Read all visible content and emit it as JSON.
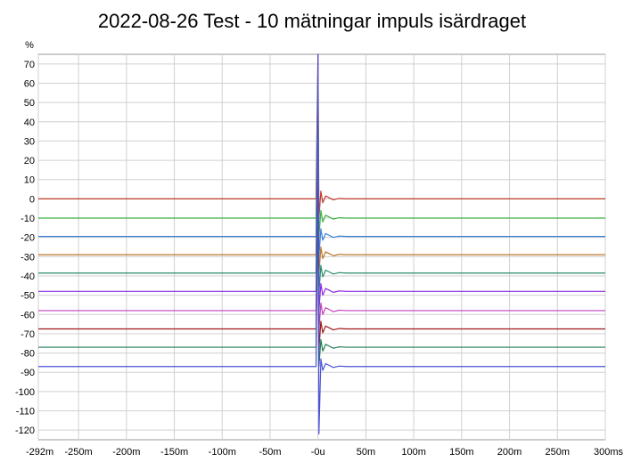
{
  "chart_data": {
    "type": "line",
    "title": "2022-08-26 Test - 10 mätningar impuls isärdraget",
    "ylabel": "%",
    "xlabel": "",
    "xlim": [
      -292,
      300
    ],
    "ylim": [
      -125,
      75
    ],
    "grid": true,
    "legend": "none",
    "x_ticks": [
      {
        "value": -292,
        "label": "-292m"
      },
      {
        "value": -250,
        "label": "-250m"
      },
      {
        "value": -200,
        "label": "-200m"
      },
      {
        "value": -150,
        "label": "-150m"
      },
      {
        "value": -100,
        "label": "-100m"
      },
      {
        "value": -50,
        "label": "-50m"
      },
      {
        "value": 0,
        "label": "-0u"
      },
      {
        "value": 50,
        "label": "50m"
      },
      {
        "value": 100,
        "label": "100m"
      },
      {
        "value": 150,
        "label": "150m"
      },
      {
        "value": 200,
        "label": "200m"
      },
      {
        "value": 250,
        "label": "250m"
      },
      {
        "value": 300,
        "label": "300ms"
      }
    ],
    "y_ticks": [
      {
        "value": 70,
        "label": "70"
      },
      {
        "value": 60,
        "label": "60"
      },
      {
        "value": 50,
        "label": "50"
      },
      {
        "value": 40,
        "label": "40"
      },
      {
        "value": 30,
        "label": "30"
      },
      {
        "value": 20,
        "label": "20"
      },
      {
        "value": 10,
        "label": "10"
      },
      {
        "value": 0,
        "label": "0"
      },
      {
        "value": -10,
        "label": "-10"
      },
      {
        "value": -20,
        "label": "-20"
      },
      {
        "value": -30,
        "label": "-30"
      },
      {
        "value": -40,
        "label": "-40"
      },
      {
        "value": -50,
        "label": "-50"
      },
      {
        "value": -60,
        "label": "-60"
      },
      {
        "value": -70,
        "label": "-70"
      },
      {
        "value": -80,
        "label": "-80"
      },
      {
        "value": -90,
        "label": "-90"
      },
      {
        "value": -100,
        "label": "-100"
      },
      {
        "value": -110,
        "label": "-110"
      },
      {
        "value": -120,
        "label": "-120"
      }
    ],
    "series": [
      {
        "color": "#c0392b",
        "x": [
          -292,
          -2,
          0,
          1,
          3,
          5,
          8,
          12,
          16,
          22,
          30,
          300
        ],
        "y": [
          0,
          0,
          75,
          -10,
          4,
          -2,
          1.5,
          0.5,
          -0.5,
          0.2,
          0,
          0
        ]
      },
      {
        "color": "#3cb043",
        "x": [
          -292,
          -2,
          0,
          1,
          3,
          5,
          8,
          12,
          16,
          22,
          30,
          300
        ],
        "y": [
          -10,
          -10,
          65,
          -20,
          -6,
          -12,
          -8.5,
          -9.5,
          -10.5,
          -9.8,
          -10,
          -10
        ]
      },
      {
        "color": "#3a7fd5",
        "x": [
          -292,
          -2,
          0,
          1,
          3,
          5,
          8,
          12,
          16,
          22,
          30,
          300
        ],
        "y": [
          -19.5,
          -19.5,
          55,
          -30,
          -15.5,
          -21.5,
          -18,
          -19,
          -20,
          -19.3,
          -19.5,
          -19.5
        ]
      },
      {
        "color": "#b8752c",
        "x": [
          -292,
          -2,
          0,
          1,
          3,
          5,
          8,
          12,
          16,
          22,
          30,
          300
        ],
        "y": [
          -29,
          -29,
          45,
          -39,
          -25,
          -31,
          -27.5,
          -28.5,
          -29.5,
          -28.8,
          -29,
          -29
        ]
      },
      {
        "color": "#2a8a6a",
        "x": [
          -292,
          -2,
          0,
          1,
          3,
          5,
          8,
          12,
          16,
          22,
          30,
          300
        ],
        "y": [
          -38.5,
          -38.5,
          35,
          -49,
          -34.5,
          -40.5,
          -37,
          -38,
          -39,
          -38.3,
          -38.5,
          -38.5
        ]
      },
      {
        "color": "#8a2be2",
        "x": [
          -292,
          -2,
          0,
          1,
          3,
          5,
          8,
          12,
          16,
          22,
          30,
          300
        ],
        "y": [
          -48,
          -48,
          25,
          -58,
          -44,
          -50,
          -46.5,
          -47.5,
          -48.5,
          -47.8,
          -48,
          -48
        ]
      },
      {
        "color": "#c040c0",
        "x": [
          -292,
          -2,
          0,
          1,
          3,
          5,
          8,
          12,
          16,
          22,
          30,
          300
        ],
        "y": [
          -58,
          -58,
          15,
          -68,
          -54,
          -60,
          -56.5,
          -57.5,
          -58.5,
          -57.8,
          -58,
          -58
        ]
      },
      {
        "color": "#a0181c",
        "x": [
          -292,
          -2,
          0,
          1,
          3,
          5,
          8,
          12,
          16,
          22,
          30,
          300
        ],
        "y": [
          -67.5,
          -67.5,
          5,
          -78,
          -63.5,
          -69.5,
          -66,
          -67,
          -68,
          -67.3,
          -67.5,
          -67.5
        ]
      },
      {
        "color": "#1e7a50",
        "x": [
          -292,
          -2,
          0,
          1,
          3,
          5,
          8,
          12,
          16,
          22,
          30,
          300
        ],
        "y": [
          -77,
          -77,
          -5,
          -87,
          -73,
          -79,
          -75.5,
          -76.5,
          -77.5,
          -76.8,
          -77,
          -77
        ]
      },
      {
        "color": "#4a50d8",
        "x": [
          -292,
          -2,
          0,
          1,
          3,
          5,
          8,
          12,
          16,
          22,
          30,
          300
        ],
        "y": [
          -87,
          -87,
          75,
          -122,
          -83,
          -89,
          -85.5,
          -86.5,
          -87.5,
          -86.8,
          -87,
          -87
        ]
      }
    ]
  }
}
